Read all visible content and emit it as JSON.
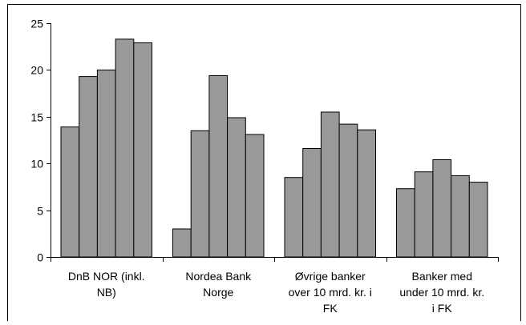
{
  "chart_data": {
    "type": "bar",
    "categories": [
      [
        "DnB NOR (inkl.",
        "NB)"
      ],
      [
        "Nordea Bank",
        "Norge"
      ],
      [
        "Øvrige banker",
        "over 10 mrd. kr. i",
        "FK"
      ],
      [
        "Banker med",
        "under 10 mrd. kr.",
        "i FK"
      ]
    ],
    "series": [
      {
        "values": [
          13.9,
          3.0,
          8.5,
          7.3
        ]
      },
      {
        "values": [
          19.3,
          13.5,
          11.6,
          9.1
        ]
      },
      {
        "values": [
          20.0,
          19.4,
          15.5,
          10.4
        ]
      },
      {
        "values": [
          23.3,
          14.9,
          14.2,
          8.7
        ]
      },
      {
        "values": [
          22.9,
          13.1,
          13.6,
          8.0
        ]
      }
    ],
    "ylim": [
      0,
      25
    ],
    "yticks": [
      "0",
      "5",
      "10",
      "15",
      "20",
      "25"
    ],
    "title": "",
    "xlabel": "",
    "ylabel": "",
    "grid": false,
    "legend": "none",
    "colors": {
      "bar_fill": "#999999",
      "bar_stroke": "#000000",
      "frame": "#000000",
      "background": "#ffffff"
    }
  }
}
